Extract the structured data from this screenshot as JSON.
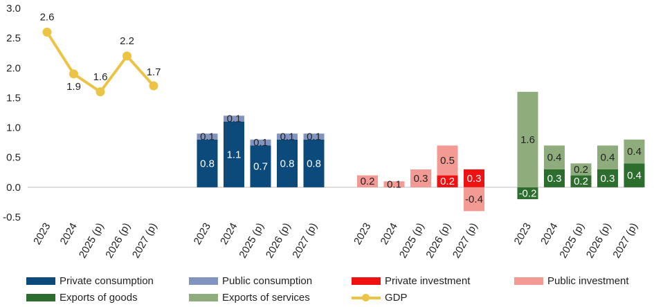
{
  "chart_data": {
    "type": "bar",
    "ylim": [
      -0.5,
      3.0
    ],
    "yticks": [
      "3.0",
      "2.5",
      "2.0",
      "1.5",
      "1.0",
      "0.5",
      "0.0",
      "-0.5"
    ],
    "ytick_values": [
      3.0,
      2.5,
      2.0,
      1.5,
      1.0,
      0.5,
      0.0,
      -0.5
    ],
    "categories": [
      "2023",
      "2024",
      "2025 (p)",
      "2026 (p)",
      "2027 (p)"
    ],
    "colors": {
      "private_consumption": "#0d4a7c",
      "public_consumption": "#8094bf",
      "private_investment": "#ee1212",
      "public_investment": "#f29a93",
      "exports_goods": "#2d6e2f",
      "exports_services": "#8fad7c",
      "gdp": "#ecc345"
    },
    "groups": [
      {
        "type": "line",
        "series": [
          {
            "name": "GDP",
            "values": [
              2.6,
              1.9,
              1.6,
              2.2,
              1.7
            ]
          }
        ]
      },
      {
        "type": "stacked_bar",
        "series": [
          {
            "name": "Private consumption",
            "values": [
              0.8,
              1.1,
              0.7,
              0.8,
              0.8
            ]
          },
          {
            "name": "Public consumption",
            "values": [
              0.1,
              0.1,
              0.1,
              0.1,
              0.1
            ]
          }
        ]
      },
      {
        "type": "stacked_bar",
        "series": [
          {
            "name": "Private investment",
            "values": [
              0.0,
              0.0,
              0.0,
              0.2,
              0.3
            ]
          },
          {
            "name": "Public investment",
            "values": [
              0.2,
              0.1,
              0.3,
              0.5,
              -0.4
            ]
          }
        ]
      },
      {
        "type": "stacked_bar",
        "series": [
          {
            "name": "Exports of goods",
            "values": [
              -0.2,
              0.3,
              0.2,
              0.3,
              0.4
            ]
          },
          {
            "name": "Exports of services",
            "values": [
              1.6,
              0.4,
              0.2,
              0.4,
              0.4
            ]
          }
        ]
      }
    ],
    "legend": [
      {
        "label": "Private consumption",
        "color": "#0d4a7c",
        "kind": "bar"
      },
      {
        "label": "Public consumption",
        "color": "#8094bf",
        "kind": "bar"
      },
      {
        "label": "Private investment",
        "color": "#ee1212",
        "kind": "bar"
      },
      {
        "label": "Public investment",
        "color": "#f29a93",
        "kind": "bar"
      },
      {
        "label": "Exports of goods",
        "color": "#2d6e2f",
        "kind": "bar"
      },
      {
        "label": "Exports of services",
        "color": "#8fad7c",
        "kind": "bar"
      },
      {
        "label": "GDP",
        "color": "#ecc345",
        "kind": "line"
      }
    ],
    "legend_position": "bottom",
    "grid": false
  }
}
